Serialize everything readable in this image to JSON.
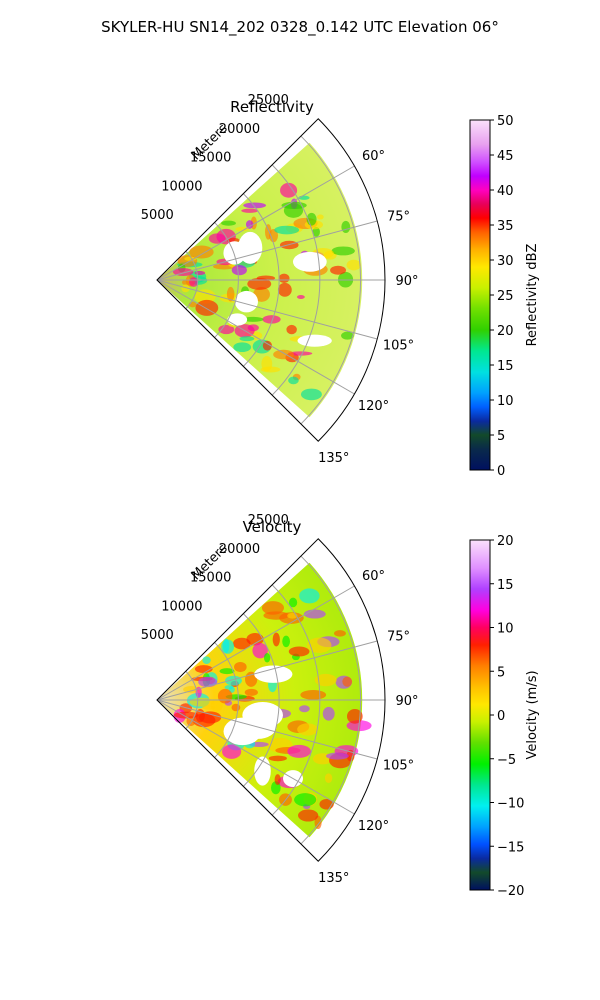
{
  "figure": {
    "title": "SKYLER-HU  SN14_202  0328_0.142 UTC Elevation 06°"
  },
  "chart_data": [
    {
      "type": "heatmap",
      "title": "Reflectivity",
      "range_label": "Meters",
      "range_ticks": [
        "5000",
        "10000",
        "15000",
        "20000",
        "25000"
      ],
      "range_tick_values": [
        5000,
        10000,
        15000,
        20000,
        25000
      ],
      "range_max": 28000,
      "azimuth_ticks": [
        "60°",
        "75°",
        "90°",
        "105°",
        "120°",
        "135°"
      ],
      "azimuth_tick_values": [
        60,
        75,
        90,
        105,
        120,
        135
      ],
      "azimuth_range": [
        45,
        135
      ],
      "grid": true,
      "colorbar": {
        "label": "Reflectivity dBZ",
        "min": 0,
        "max": 50,
        "ticks": [
          "0",
          "5",
          "10",
          "15",
          "20",
          "25",
          "30",
          "35",
          "40",
          "45",
          "50"
        ],
        "tick_values": [
          0,
          5,
          10,
          15,
          20,
          25,
          30,
          35,
          40,
          45,
          50
        ]
      }
    },
    {
      "type": "heatmap",
      "title": "Velocity",
      "range_label": "Meters",
      "range_ticks": [
        "5000",
        "10000",
        "15000",
        "20000",
        "25000"
      ],
      "range_tick_values": [
        5000,
        10000,
        15000,
        20000,
        25000
      ],
      "range_max": 28000,
      "azimuth_ticks": [
        "60°",
        "75°",
        "90°",
        "105°",
        "120°",
        "135°"
      ],
      "azimuth_tick_values": [
        60,
        75,
        90,
        105,
        120,
        135
      ],
      "azimuth_range": [
        45,
        135
      ],
      "grid": true,
      "colorbar": {
        "label": "Velocity (m/s)",
        "min": -20,
        "max": 20,
        "ticks": [
          "−20",
          "−15",
          "−10",
          "−5",
          "0",
          "5",
          "10",
          "15",
          "20"
        ],
        "tick_values": [
          -20,
          -15,
          -10,
          -5,
          0,
          5,
          10,
          15,
          20
        ]
      }
    }
  ]
}
